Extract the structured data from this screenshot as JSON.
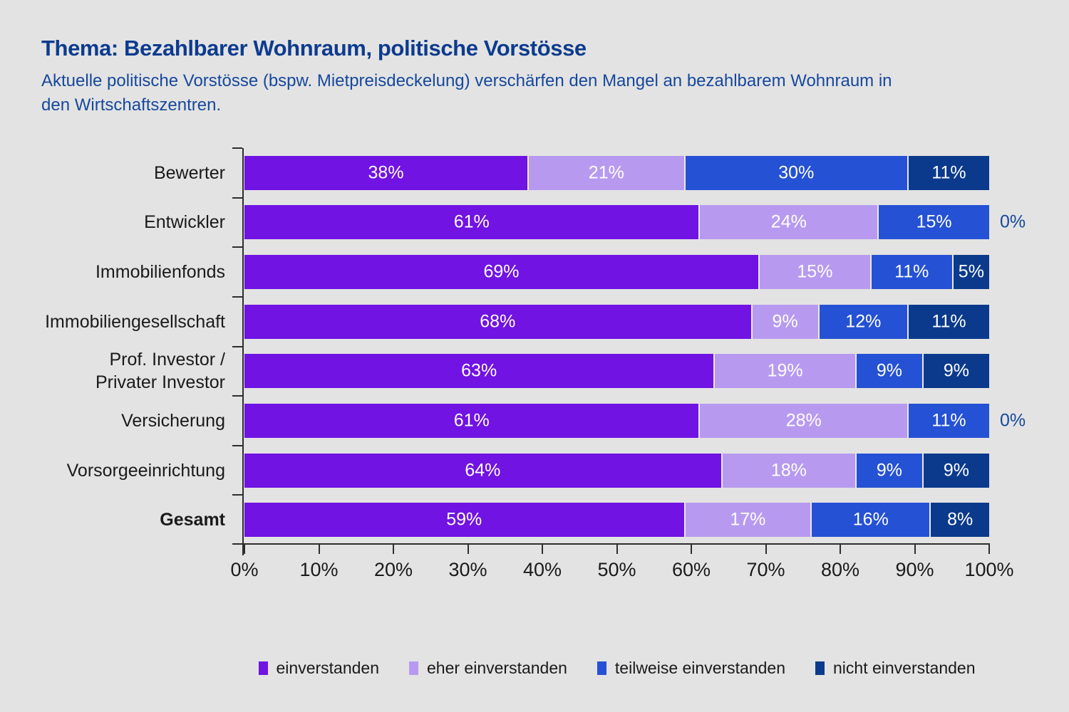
{
  "header": {
    "title": "Thema: Bezahlbarer Wohnraum, politische Vorstösse",
    "subtitle": "Aktuelle politische Vorstösse (bspw. Mietpreisdeckelung) verschärfen den Mangel an bezahlbarem Wohnraum in den Wirtschaftszentren."
  },
  "chart_data": {
    "type": "bar",
    "orientation": "horizontal",
    "stacked": true,
    "unit": "%",
    "categories": [
      "Bewerter",
      "Entwickler",
      "Immobilienfonds",
      "Immobiliengesellschaft",
      "Prof. Investor / Privater Investor",
      "Versicherung",
      "Vorsorgeeinrichtung",
      "Gesamt"
    ],
    "category_lines": [
      [
        "Bewerter"
      ],
      [
        "Entwickler"
      ],
      [
        "Immobilienfonds"
      ],
      [
        "Immobiliengesellschaft"
      ],
      [
        "Prof. Investor /",
        "Privater Investor"
      ],
      [
        "Versicherung"
      ],
      [
        "Vorsorgeeinrichtung"
      ],
      [
        "Gesamt"
      ]
    ],
    "bold_category": "Gesamt",
    "series": [
      {
        "name": "einverstanden",
        "color": "#7013e3",
        "values": [
          38,
          61,
          69,
          68,
          63,
          61,
          64,
          59
        ]
      },
      {
        "name": "eher einverstanden",
        "color": "#b79af0",
        "values": [
          21,
          24,
          15,
          9,
          19,
          28,
          18,
          17
        ]
      },
      {
        "name": "teilweise einverstanden",
        "color": "#2551d4",
        "values": [
          30,
          15,
          11,
          12,
          9,
          11,
          9,
          16
        ]
      },
      {
        "name": "nicht einverstanden",
        "color": "#0b3a8c",
        "values": [
          11,
          0,
          5,
          11,
          9,
          0,
          9,
          8
        ]
      }
    ],
    "data_labels": "inside, white, suffix %; zero values shown outside bar end in dark blue",
    "x_axis": {
      "range": [
        0,
        100
      ],
      "ticks": [
        "0%",
        "10%",
        "20%",
        "30%",
        "40%",
        "50%",
        "60%",
        "70%",
        "80%",
        "90%",
        "100%"
      ]
    },
    "grid": "off",
    "legend_position": "bottom"
  },
  "style": {
    "background": "#e3e3e3",
    "title_color": "#0d3b8e",
    "subtitle_color": "#16489c",
    "axis_color": "#2e2e2e",
    "bar_label_color": "#ffffff",
    "zero_label_color": "#16489c"
  }
}
